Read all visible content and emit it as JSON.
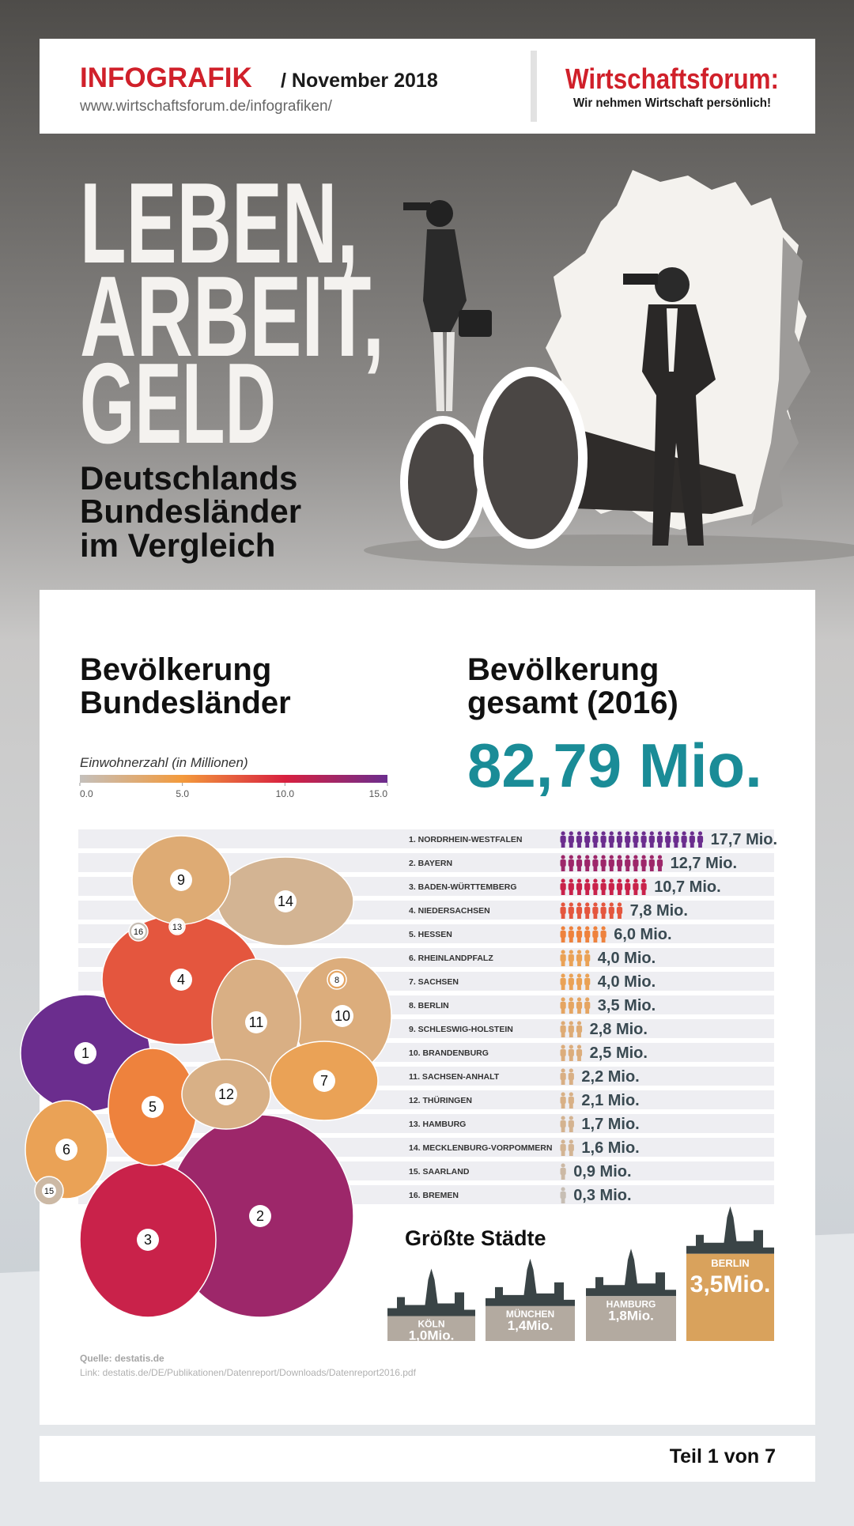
{
  "header": {
    "title": "INFOGRAFIK",
    "date": "/ November 2018",
    "url": "www.wirtschaftsforum.de/infografiken/",
    "brand": "Wirtschaftsforum:",
    "slogan": "Wir nehmen Wirtschaft persönlich!"
  },
  "hero": {
    "title_lines": [
      "LEBEN,",
      "ARBEIT,",
      "GELD"
    ],
    "subtitle_lines": [
      "Deutschlands",
      "Bundesländer",
      "im Vergleich"
    ]
  },
  "population": {
    "heading_lines": [
      "Bevölkerung",
      "Bundesländer"
    ],
    "total_heading_lines": [
      "Bevölkerung",
      "gesamt (2016)"
    ],
    "total": "82,79 Mio."
  },
  "chart_data": [
    {
      "type": "bar",
      "orientation": "horizontal",
      "categories": [
        "1. NORDRHEIN-WESTFALEN",
        "2. BAYERN",
        "3. BADEN-WÜRTTEMBERG",
        "4. NIEDERSACHSEN",
        "5. HESSEN",
        "6. RHEINLANDPFALZ",
        "7. SACHSEN",
        "8. BERLIN",
        "9. SCHLESWIG-HOLSTEIN",
        "10. BRANDENBURG",
        "11. SACHSEN-ANHALT",
        "12. THÜRINGEN",
        "13. HAMBURG",
        "14. MECKLENBURG-VORPOMMERN",
        "15. SAARLAND",
        "16. BREMEN"
      ],
      "values": [
        17.7,
        12.7,
        10.7,
        7.8,
        6.0,
        4.0,
        4.0,
        3.5,
        2.8,
        2.5,
        2.2,
        2.1,
        1.7,
        1.6,
        0.9,
        0.3
      ],
      "value_labels": [
        "17,7 Mio.",
        "12,7 Mio.",
        "10,7 Mio.",
        "7,8 Mio.",
        "6,0 Mio.",
        "4,0 Mio.",
        "4,0 Mio.",
        "3,5 Mio.",
        "2,8 Mio.",
        "2,5 Mio.",
        "2,2 Mio.",
        "2,1 Mio.",
        "1,7 Mio.",
        "1,6 Mio.",
        "0,9 Mio.",
        "0,3 Mio."
      ],
      "map_labels": [
        1,
        2,
        3,
        4,
        5,
        6,
        7,
        8,
        9,
        10,
        11,
        12,
        13,
        14,
        15,
        16
      ],
      "colorscale": {
        "label": "Einwohnerzahl (in Millionen)",
        "lim": [
          0,
          15
        ],
        "colors": [
          "#c4c0bc",
          "#f39a3c",
          "#d8203f",
          "#6b2d8e"
        ],
        "ticks": [
          {
            "value": 0,
            "label": "0.0"
          },
          {
            "value": 5,
            "label": "5.0"
          },
          {
            "value": 10,
            "label": "10.0"
          },
          {
            "value": 15,
            "label": "15.0"
          }
        ]
      }
    },
    {
      "type": "bar",
      "orientation": "vertical",
      "title": "Größte Städte",
      "categories": [
        "KÖLN",
        "MÜNCHEN",
        "HAMBURG",
        "BERLIN"
      ],
      "values": [
        1.0,
        1.4,
        1.8,
        3.5
      ],
      "value_labels": [
        "1,0Mio.",
        "1,4Mio.",
        "1,8Mio.",
        "3,5Mio."
      ],
      "colors": [
        "#b3aaa0",
        "#b3aaa0",
        "#b3aaa0",
        "#d9a25c"
      ]
    }
  ],
  "source": {
    "label": "Quelle: destatis.de",
    "link": "Link: destatis.de/DE/Publikationen/Datenreport/Downloads/Datenreport2016.pdf"
  },
  "footer": {
    "page": "Teil 1 von 7"
  }
}
